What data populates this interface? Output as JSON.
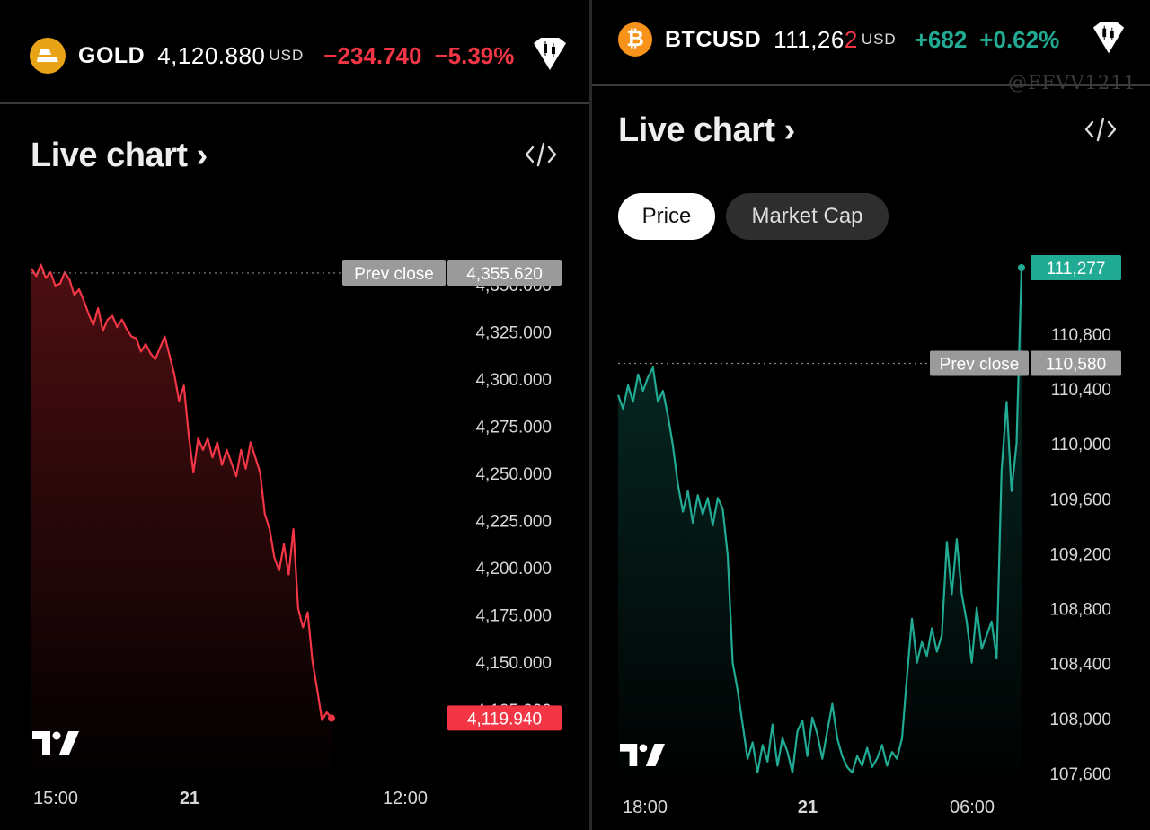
{
  "gold": {
    "symbol": "GOLD",
    "price": "4,120.880",
    "currency": "USD",
    "change": "−234.740",
    "change_pct": "−5.39%",
    "coin_icon": "gold-bars-icon",
    "live_chart_label": "Live chart",
    "prev_close_label": "Prev close",
    "prev_close_value": "4,355.620",
    "last_value": "4,119.940",
    "colors": {
      "line": "#f23645",
      "fill": "#8b1a20"
    }
  },
  "btc": {
    "symbol": "BTCUSD",
    "price_prefix": "111,26",
    "price_last": "2",
    "currency": "USD",
    "change": "+682",
    "change_pct": "+0.62%",
    "coin_icon": "bitcoin-icon",
    "live_chart_label": "Live chart",
    "tabs": {
      "price": "Price",
      "market_cap": "Market Cap"
    },
    "prev_close_label": "Prev close",
    "prev_close_value": "110,580",
    "last_value": "111,277",
    "watermark": "@FFVV1211",
    "colors": {
      "line": "#22ab94",
      "fill": "#0f5449"
    }
  },
  "chart_data": [
    {
      "type": "area",
      "series": [
        {
          "values": [
            4358,
            4354,
            4360,
            4353,
            4356,
            4349,
            4350,
            4356,
            4352,
            4344,
            4347,
            4341,
            4334,
            4328,
            4337,
            4325,
            4331,
            4333,
            4327,
            4331,
            4326,
            4322,
            4321,
            4314,
            4318,
            4313,
            4310,
            4316,
            4322,
            4312,
            4302,
            4288,
            4296,
            4270,
            4250,
            4268,
            4262,
            4268,
            4258,
            4266,
            4254,
            4262,
            4255,
            4248,
            4262,
            4252,
            4266,
            4258,
            4250,
            4228,
            4220,
            4205,
            4198,
            4212,
            4196,
            4220,
            4178,
            4168,
            4176,
            4150,
            4135,
            4119,
            4123,
            4119.94
          ]
        }
      ],
      "y_ticks": [
        "4,350.000",
        "4,325.000",
        "4,300.000",
        "4,275.000",
        "4,250.000",
        "4,225.000",
        "4,200.000",
        "4,175.000",
        "4,150.000",
        "4,125.000"
      ],
      "x_ticks": [
        "15:00",
        "21",
        "12:00"
      ],
      "ylim": [
        4113,
        4377
      ],
      "prev_close": 4355.62,
      "grid": false
    },
    {
      "type": "area",
      "series": [
        {
          "values": [
            110350,
            110250,
            110420,
            110300,
            110500,
            110380,
            110480,
            110550,
            110300,
            110380,
            110200,
            109980,
            109700,
            109500,
            109650,
            109420,
            109620,
            109480,
            109600,
            109400,
            109600,
            109520,
            109180,
            108400,
            108200,
            107950,
            107700,
            107820,
            107600,
            107800,
            107680,
            107950,
            107650,
            107850,
            107750,
            107600,
            107900,
            107980,
            107720,
            108000,
            107880,
            107700,
            107900,
            108100,
            107850,
            107720,
            107640,
            107600,
            107720,
            107650,
            107780,
            107640,
            107700,
            107800,
            107650,
            107750,
            107700,
            107850,
            108300,
            108720,
            108400,
            108550,
            108450,
            108650,
            108480,
            108600,
            109280,
            108900,
            109300,
            108900,
            108700,
            108400,
            108800,
            108500,
            108600,
            108700,
            108430,
            109800,
            110300,
            109650,
            110000,
            111277
          ]
        }
      ],
      "y_ticks": [
        "110,800",
        "110,400",
        "110,000",
        "109,600",
        "109,200",
        "108,800",
        "108,400",
        "108,000",
        "107,600"
      ],
      "x_ticks": [
        "18:00",
        "21",
        "06:00"
      ],
      "ylim": [
        107600,
        111277
      ],
      "prev_close": 110580,
      "grid": false
    }
  ]
}
